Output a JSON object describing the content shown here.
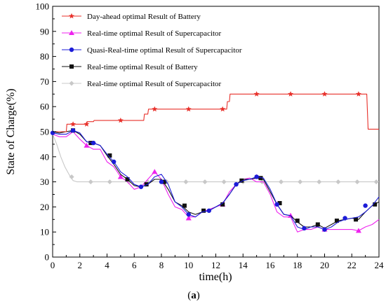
{
  "chart_data": {
    "type": "line",
    "xlabel": "time(h)",
    "ylabel": "State of Charge(%)",
    "xlim": [
      0,
      24
    ],
    "ylim": [
      0,
      100
    ],
    "xticks": [
      "0",
      "2",
      "4",
      "6",
      "8",
      "10",
      "12",
      "14",
      "16",
      "18",
      "20",
      "22",
      "24"
    ],
    "yticks": [
      "0",
      "10",
      "20",
      "30",
      "40",
      "50",
      "60",
      "70",
      "80",
      "90",
      "100"
    ],
    "grid": false,
    "legend_position": "top-left",
    "caption_open": "(",
    "caption_letter": "a",
    "caption_close": ")",
    "series": [
      {
        "name": "Day-ahead optimal Result of Battery",
        "color": "#e8302a",
        "marker": "star",
        "x": [
          0,
          1,
          1.05,
          2.5,
          2.55,
          3.0,
          3.05,
          5.0,
          6.7,
          6.75,
          7.0,
          7.05,
          7.6,
          10.0,
          12.8,
          12.85,
          13.0,
          13.05,
          15.0,
          17.5,
          20.0,
          22.5,
          23.1,
          23.2,
          24.0
        ],
        "y": [
          50,
          50,
          53,
          53,
          54,
          54,
          54.5,
          54.5,
          54.5,
          57,
          57,
          59,
          59,
          59,
          59,
          62,
          62,
          65,
          65,
          65,
          65,
          65,
          65,
          51,
          51
        ],
        "marker_x": [
          1.5,
          2.5,
          5.0,
          7.5,
          10.0,
          12.5,
          15.0,
          17.5,
          20.0,
          22.5
        ],
        "marker_y": [
          53,
          53,
          54.5,
          59,
          59,
          59,
          65,
          65,
          65,
          65
        ]
      },
      {
        "name": "Real-time optimal Result of Supercapacitor",
        "color": "#ee22ee",
        "marker": "triangle",
        "x": [
          0,
          0.5,
          1.0,
          1.5,
          2.0,
          2.5,
          3.0,
          3.5,
          4.0,
          4.5,
          5.0,
          5.5,
          6.0,
          6.5,
          7.0,
          7.5,
          8.0,
          8.5,
          9.0,
          9.5,
          10.0,
          10.5,
          11.0,
          11.5,
          12.0,
          12.5,
          13.0,
          13.5,
          14.0,
          14.5,
          15.0,
          15.5,
          16.0,
          16.5,
          17.0,
          17.5,
          18.0,
          18.5,
          19.0,
          19.5,
          20.0,
          20.5,
          21.0,
          21.5,
          22.0,
          22.5,
          23.0,
          23.5,
          24.0
        ],
        "y": [
          49,
          48,
          48,
          50,
          47,
          44.5,
          43,
          43,
          38,
          36,
          32,
          30,
          27,
          28,
          31,
          34,
          31,
          25,
          20,
          19,
          16,
          16,
          18,
          19,
          20,
          21,
          26,
          29,
          31,
          31.5,
          30,
          30,
          25,
          18,
          16,
          16,
          10,
          11,
          11,
          12,
          11,
          11,
          11,
          11,
          11,
          10.5,
          12,
          13,
          15
        ],
        "marker_x": [
          2.5,
          5.0,
          7.5,
          10.0,
          12.5,
          15.0,
          17.5,
          20.0,
          22.5
        ],
        "marker_y": [
          44.5,
          32,
          34,
          15.5,
          21,
          32,
          16.5,
          11,
          10.5
        ]
      },
      {
        "name": "Quasi-Real-time optimal Result of Supercapacitor",
        "color": "#1c1cd8",
        "marker": "circle",
        "x": [
          0,
          0.5,
          1.0,
          1.5,
          2.0,
          2.5,
          3.0,
          3.5,
          4.0,
          4.5,
          5.0,
          5.5,
          6.0,
          6.5,
          7.0,
          7.5,
          8.0,
          8.5,
          9.0,
          9.5,
          10.0,
          10.5,
          11.0,
          11.5,
          12.0,
          12.5,
          13.0,
          13.5,
          14.0,
          14.5,
          15.0,
          15.5,
          16.0,
          16.5,
          17.0,
          17.5,
          18.0,
          18.5,
          19.0,
          19.5,
          20.0,
          20.5,
          21.0,
          21.5,
          22.0,
          22.5,
          23.0,
          23.5,
          24.0
        ],
        "y": [
          49.5,
          49,
          49,
          50.5,
          49.5,
          46,
          45.5,
          44.5,
          41,
          38,
          34,
          32,
          29,
          28,
          29,
          32,
          33,
          29,
          22,
          20,
          17,
          16,
          18,
          18.5,
          20,
          21.5,
          25,
          29,
          30.5,
          31,
          32,
          31.5,
          27,
          21,
          17,
          16.5,
          12,
          11,
          12,
          12,
          11,
          12,
          14,
          15,
          15.5,
          16,
          18,
          20.5,
          24
        ],
        "marker_x": [
          0,
          1.5,
          3.0,
          4.5,
          6.5,
          8.0,
          10.0,
          11.5,
          13.5,
          15.0,
          16.5,
          18.5,
          20.0,
          21.5,
          23.0
        ],
        "marker_y": [
          49.5,
          50.5,
          45.5,
          38,
          28,
          30,
          17,
          18.5,
          29,
          32,
          21,
          11.5,
          11,
          15.5,
          20.5
        ]
      },
      {
        "name": "Real-time optimal Result of Battery",
        "color": "#111111",
        "marker": "square",
        "x": [
          0,
          0.5,
          1.0,
          1.5,
          2.0,
          2.5,
          3.0,
          3.5,
          4.0,
          4.5,
          5.0,
          5.5,
          6.0,
          6.5,
          7.0,
          7.5,
          8.0,
          8.5,
          9.0,
          9.5,
          10.0,
          10.5,
          11.0,
          11.5,
          12.0,
          12.5,
          13.0,
          13.5,
          14.0,
          14.5,
          15.0,
          15.5,
          16.0,
          16.5,
          17.0,
          17.5,
          18.0,
          18.5,
          19.0,
          19.5,
          20.0,
          20.5,
          21.0,
          21.5,
          22.0,
          22.5,
          23.0,
          23.5,
          24.0
        ],
        "y": [
          50,
          49.5,
          50,
          50.5,
          49,
          46,
          45.5,
          44.5,
          40.5,
          37,
          33,
          31,
          28.5,
          28,
          29,
          31,
          31,
          27,
          22,
          20.5,
          18,
          17,
          18,
          18.5,
          20,
          21.5,
          25,
          29,
          31,
          31,
          31.5,
          31,
          26,
          21,
          17,
          16.5,
          14,
          12,
          12,
          13,
          11.5,
          13,
          14.5,
          15,
          15.5,
          15,
          18,
          20.5,
          22
        ],
        "marker_x": [
          1.5,
          2.8,
          4.2,
          5.5,
          6.9,
          8.2,
          9.7,
          11.1,
          12.5,
          13.9,
          15.3,
          16.7,
          18.0,
          19.5,
          20.9,
          22.3,
          23.7
        ],
        "marker_y": [
          50.5,
          45.5,
          40.5,
          31,
          29,
          30,
          20.5,
          18.5,
          21,
          30.5,
          31.5,
          21.5,
          14.5,
          13,
          14.5,
          15,
          21
        ]
      },
      {
        "name": "Real-time optimal Result of Supercapacitor",
        "color": "#c8c8c8",
        "marker": "diamond",
        "x": [
          0,
          0.3,
          0.6,
          0.9,
          1.2,
          1.5,
          1.8,
          2.5,
          4.0,
          6.0,
          8.0,
          10.0,
          12.0,
          14.0,
          16.0,
          18.0,
          20.0,
          22.0,
          24.0
        ],
        "y": [
          49,
          45,
          40,
          36,
          33,
          30.5,
          30,
          30,
          30,
          30,
          30,
          30,
          30,
          30,
          30,
          30,
          30,
          30,
          30
        ],
        "marker_x": [
          1.4,
          2.8,
          4.2,
          5.6,
          7.0,
          8.4,
          9.8,
          11.2,
          12.6,
          14.0,
          15.4,
          16.8,
          18.2,
          19.6,
          21.0,
          22.4,
          23.8
        ],
        "marker_y": [
          32,
          30,
          30,
          30,
          30,
          30,
          30,
          30,
          30,
          30,
          30,
          30,
          30,
          30,
          30,
          30,
          30
        ]
      }
    ]
  }
}
